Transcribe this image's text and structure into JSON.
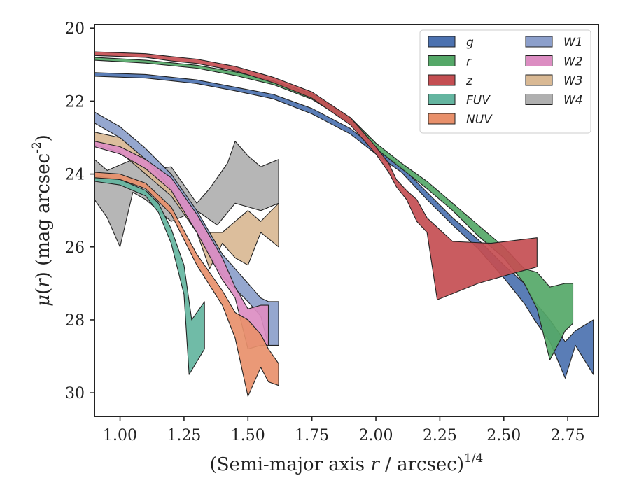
{
  "chart_data": {
    "type": "area",
    "xlabel": "(Semi-major axis r / arcsec)^{1/4}",
    "ylabel": "μ(r) (mag arcsec^{-2})",
    "xlim": [
      0.9,
      2.87
    ],
    "ylim": [
      30.65,
      19.9
    ],
    "y_inverted": true,
    "xticks": [
      1.0,
      1.25,
      1.5,
      1.75,
      2.0,
      2.25,
      2.5,
      2.75
    ],
    "xtick_labels": [
      "1.00",
      "1.25",
      "1.50",
      "1.75",
      "2.00",
      "2.25",
      "2.50",
      "2.75"
    ],
    "yticks": [
      20,
      22,
      24,
      26,
      28,
      30
    ],
    "ytick_labels": [
      "20",
      "22",
      "24",
      "26",
      "28",
      "30"
    ],
    "legend_position": "top-right",
    "legend_columns": 2,
    "series": [
      {
        "name": "g",
        "color": "#4c72b0",
        "upper": [
          [
            0.9,
            21.22
          ],
          [
            1.1,
            21.27
          ],
          [
            1.3,
            21.42
          ],
          [
            1.45,
            21.62
          ],
          [
            1.6,
            21.82
          ],
          [
            1.75,
            22.2
          ],
          [
            1.9,
            22.75
          ],
          [
            2.0,
            23.3
          ],
          [
            2.1,
            23.8
          ],
          [
            2.2,
            24.5
          ],
          [
            2.3,
            25.2
          ],
          [
            2.4,
            25.8
          ],
          [
            2.5,
            26.5
          ],
          [
            2.58,
            27.0
          ],
          [
            2.62,
            27.5
          ],
          [
            2.68,
            28.0
          ],
          [
            2.74,
            28.6
          ],
          [
            2.78,
            28.3
          ],
          [
            2.85,
            28.0
          ]
        ],
        "lower": [
          [
            0.9,
            21.32
          ],
          [
            1.1,
            21.37
          ],
          [
            1.3,
            21.52
          ],
          [
            1.45,
            21.72
          ],
          [
            1.6,
            21.94
          ],
          [
            1.75,
            22.35
          ],
          [
            1.9,
            22.9
          ],
          [
            2.0,
            23.45
          ],
          [
            2.1,
            23.95
          ],
          [
            2.2,
            24.7
          ],
          [
            2.3,
            25.4
          ],
          [
            2.4,
            26.05
          ],
          [
            2.5,
            26.85
          ],
          [
            2.58,
            27.55
          ],
          [
            2.62,
            28.0
          ],
          [
            2.68,
            28.6
          ],
          [
            2.74,
            29.6
          ],
          [
            2.78,
            28.7
          ],
          [
            2.85,
            29.5
          ]
        ]
      },
      {
        "name": "r",
        "color": "#55a868",
        "upper": [
          [
            0.9,
            20.8
          ],
          [
            1.1,
            20.88
          ],
          [
            1.3,
            21.02
          ],
          [
            1.45,
            21.2
          ],
          [
            1.6,
            21.45
          ],
          [
            1.75,
            21.8
          ],
          [
            1.9,
            22.45
          ],
          [
            2.0,
            23.15
          ],
          [
            2.1,
            23.7
          ],
          [
            2.2,
            24.2
          ],
          [
            2.3,
            24.8
          ],
          [
            2.4,
            25.4
          ],
          [
            2.5,
            26.0
          ],
          [
            2.58,
            26.6
          ],
          [
            2.63,
            26.7
          ],
          [
            2.68,
            27.1
          ],
          [
            2.74,
            27.0
          ],
          [
            2.77,
            27.0
          ]
        ],
        "lower": [
          [
            0.9,
            20.88
          ],
          [
            1.1,
            20.96
          ],
          [
            1.3,
            21.1
          ],
          [
            1.45,
            21.3
          ],
          [
            1.6,
            21.55
          ],
          [
            1.75,
            21.95
          ],
          [
            1.9,
            22.6
          ],
          [
            2.0,
            23.3
          ],
          [
            2.1,
            23.85
          ],
          [
            2.2,
            24.4
          ],
          [
            2.3,
            25.0
          ],
          [
            2.4,
            25.7
          ],
          [
            2.5,
            26.3
          ],
          [
            2.58,
            27.0
          ],
          [
            2.63,
            27.7
          ],
          [
            2.68,
            29.1
          ],
          [
            2.74,
            28.3
          ],
          [
            2.77,
            28.1
          ]
        ]
      },
      {
        "name": "z",
        "color": "#c44e52",
        "upper": [
          [
            0.9,
            20.65
          ],
          [
            1.1,
            20.7
          ],
          [
            1.2,
            20.78
          ],
          [
            1.3,
            20.85
          ],
          [
            1.45,
            21.05
          ],
          [
            1.6,
            21.35
          ],
          [
            1.75,
            21.75
          ],
          [
            1.9,
            22.45
          ],
          [
            2.0,
            23.25
          ],
          [
            2.05,
            23.7
          ],
          [
            2.08,
            24.15
          ],
          [
            2.12,
            24.45
          ],
          [
            2.16,
            24.7
          ],
          [
            2.2,
            25.2
          ],
          [
            2.3,
            25.85
          ],
          [
            2.45,
            25.9
          ],
          [
            2.63,
            25.75
          ],
          [
            2.63,
            26.55
          ]
        ],
        "lower": [
          [
            0.9,
            20.75
          ],
          [
            1.1,
            20.8
          ],
          [
            1.2,
            20.9
          ],
          [
            1.3,
            20.97
          ],
          [
            1.45,
            21.17
          ],
          [
            1.6,
            21.5
          ],
          [
            1.75,
            21.92
          ],
          [
            1.9,
            22.65
          ],
          [
            2.0,
            23.45
          ],
          [
            2.05,
            23.95
          ],
          [
            2.08,
            24.35
          ],
          [
            2.12,
            24.7
          ],
          [
            2.16,
            25.3
          ],
          [
            2.2,
            25.6
          ],
          [
            2.24,
            27.45
          ],
          [
            2.4,
            27.0
          ],
          [
            2.55,
            26.7
          ],
          [
            2.63,
            26.55
          ]
        ]
      },
      {
        "name": "FUV",
        "color": "#64b5a0",
        "upper": [
          [
            0.9,
            24.05
          ],
          [
            1.0,
            24.15
          ],
          [
            1.1,
            24.45
          ],
          [
            1.15,
            24.8
          ],
          [
            1.2,
            25.5
          ],
          [
            1.25,
            26.5
          ],
          [
            1.28,
            28.0
          ],
          [
            1.33,
            27.5
          ]
        ],
        "lower": [
          [
            0.9,
            24.2
          ],
          [
            1.0,
            24.3
          ],
          [
            1.1,
            24.6
          ],
          [
            1.15,
            25.05
          ],
          [
            1.2,
            25.9
          ],
          [
            1.25,
            27.3
          ],
          [
            1.27,
            29.5
          ],
          [
            1.33,
            28.8
          ]
        ]
      },
      {
        "name": "NUV",
        "color": "#e8906b",
        "upper": [
          [
            0.9,
            23.95
          ],
          [
            1.0,
            24.0
          ],
          [
            1.1,
            24.25
          ],
          [
            1.2,
            24.9
          ],
          [
            1.3,
            26.2
          ],
          [
            1.4,
            27.2
          ],
          [
            1.45,
            27.8
          ],
          [
            1.5,
            28.0
          ],
          [
            1.55,
            28.4
          ],
          [
            1.58,
            28.8
          ],
          [
            1.62,
            29.2
          ]
        ],
        "lower": [
          [
            0.9,
            24.1
          ],
          [
            1.0,
            24.15
          ],
          [
            1.1,
            24.4
          ],
          [
            1.2,
            25.1
          ],
          [
            1.3,
            26.5
          ],
          [
            1.4,
            27.6
          ],
          [
            1.45,
            28.5
          ],
          [
            1.5,
            30.1
          ],
          [
            1.55,
            29.3
          ],
          [
            1.58,
            29.7
          ],
          [
            1.62,
            29.8
          ]
        ]
      },
      {
        "name": "W1",
        "color": "#8c9fcb",
        "upper": [
          [
            0.9,
            22.3
          ],
          [
            1.0,
            22.7
          ],
          [
            1.1,
            23.3
          ],
          [
            1.2,
            24.0
          ],
          [
            1.3,
            25.0
          ],
          [
            1.4,
            26.2
          ],
          [
            1.5,
            27.0
          ],
          [
            1.55,
            27.4
          ],
          [
            1.58,
            27.5
          ],
          [
            1.62,
            27.5
          ]
        ],
        "lower": [
          [
            0.9,
            22.6
          ],
          [
            1.0,
            23.0
          ],
          [
            1.1,
            23.6
          ],
          [
            1.2,
            24.4
          ],
          [
            1.3,
            25.6
          ],
          [
            1.4,
            26.8
          ],
          [
            1.5,
            27.5
          ],
          [
            1.55,
            27.9
          ],
          [
            1.58,
            28.7
          ],
          [
            1.62,
            28.7
          ]
        ]
      },
      {
        "name": "W2",
        "color": "#dc8dc2",
        "upper": [
          [
            0.9,
            23.1
          ],
          [
            1.0,
            23.25
          ],
          [
            1.1,
            23.6
          ],
          [
            1.2,
            24.1
          ],
          [
            1.3,
            25.1
          ],
          [
            1.4,
            26.3
          ],
          [
            1.45,
            27.1
          ],
          [
            1.5,
            27.7
          ],
          [
            1.55,
            27.6
          ],
          [
            1.58,
            27.6
          ]
        ],
        "lower": [
          [
            0.9,
            23.25
          ],
          [
            1.0,
            23.45
          ],
          [
            1.1,
            23.85
          ],
          [
            1.2,
            24.45
          ],
          [
            1.3,
            25.6
          ],
          [
            1.4,
            26.9
          ],
          [
            1.45,
            27.4
          ],
          [
            1.5,
            28.8
          ],
          [
            1.55,
            28.7
          ],
          [
            1.58,
            28.7
          ]
        ]
      },
      {
        "name": "W3",
        "color": "#d9b994",
        "upper": [
          [
            0.9,
            22.85
          ],
          [
            1.0,
            23.0
          ],
          [
            1.1,
            23.6
          ],
          [
            1.2,
            24.2
          ],
          [
            1.3,
            25.1
          ],
          [
            1.35,
            25.6
          ],
          [
            1.4,
            25.6
          ],
          [
            1.45,
            25.3
          ],
          [
            1.5,
            25.0
          ],
          [
            1.55,
            25.3
          ],
          [
            1.62,
            24.8
          ]
        ],
        "lower": [
          [
            0.9,
            23.2
          ],
          [
            1.0,
            23.4
          ],
          [
            1.1,
            24.0
          ],
          [
            1.2,
            24.6
          ],
          [
            1.3,
            25.6
          ],
          [
            1.35,
            26.6
          ],
          [
            1.4,
            25.9
          ],
          [
            1.45,
            26.3
          ],
          [
            1.5,
            26.5
          ],
          [
            1.55,
            25.6
          ],
          [
            1.62,
            26.0
          ]
        ]
      },
      {
        "name": "W4",
        "color": "#b0b0b0",
        "upper": [
          [
            0.9,
            23.6
          ],
          [
            0.95,
            23.9
          ],
          [
            1.05,
            23.6
          ],
          [
            1.1,
            23.9
          ],
          [
            1.2,
            23.8
          ],
          [
            1.3,
            24.8
          ],
          [
            1.35,
            24.4
          ],
          [
            1.42,
            23.7
          ],
          [
            1.45,
            23.1
          ],
          [
            1.5,
            23.5
          ],
          [
            1.55,
            23.8
          ],
          [
            1.62,
            23.6
          ]
        ],
        "lower": [
          [
            0.9,
            24.7
          ],
          [
            0.95,
            25.2
          ],
          [
            1.0,
            26.0
          ],
          [
            1.05,
            24.5
          ],
          [
            1.1,
            24.7
          ],
          [
            1.2,
            25.3
          ],
          [
            1.3,
            25.0
          ],
          [
            1.38,
            25.4
          ],
          [
            1.45,
            24.8
          ],
          [
            1.5,
            24.9
          ],
          [
            1.55,
            25.0
          ],
          [
            1.62,
            24.8
          ]
        ]
      }
    ]
  }
}
